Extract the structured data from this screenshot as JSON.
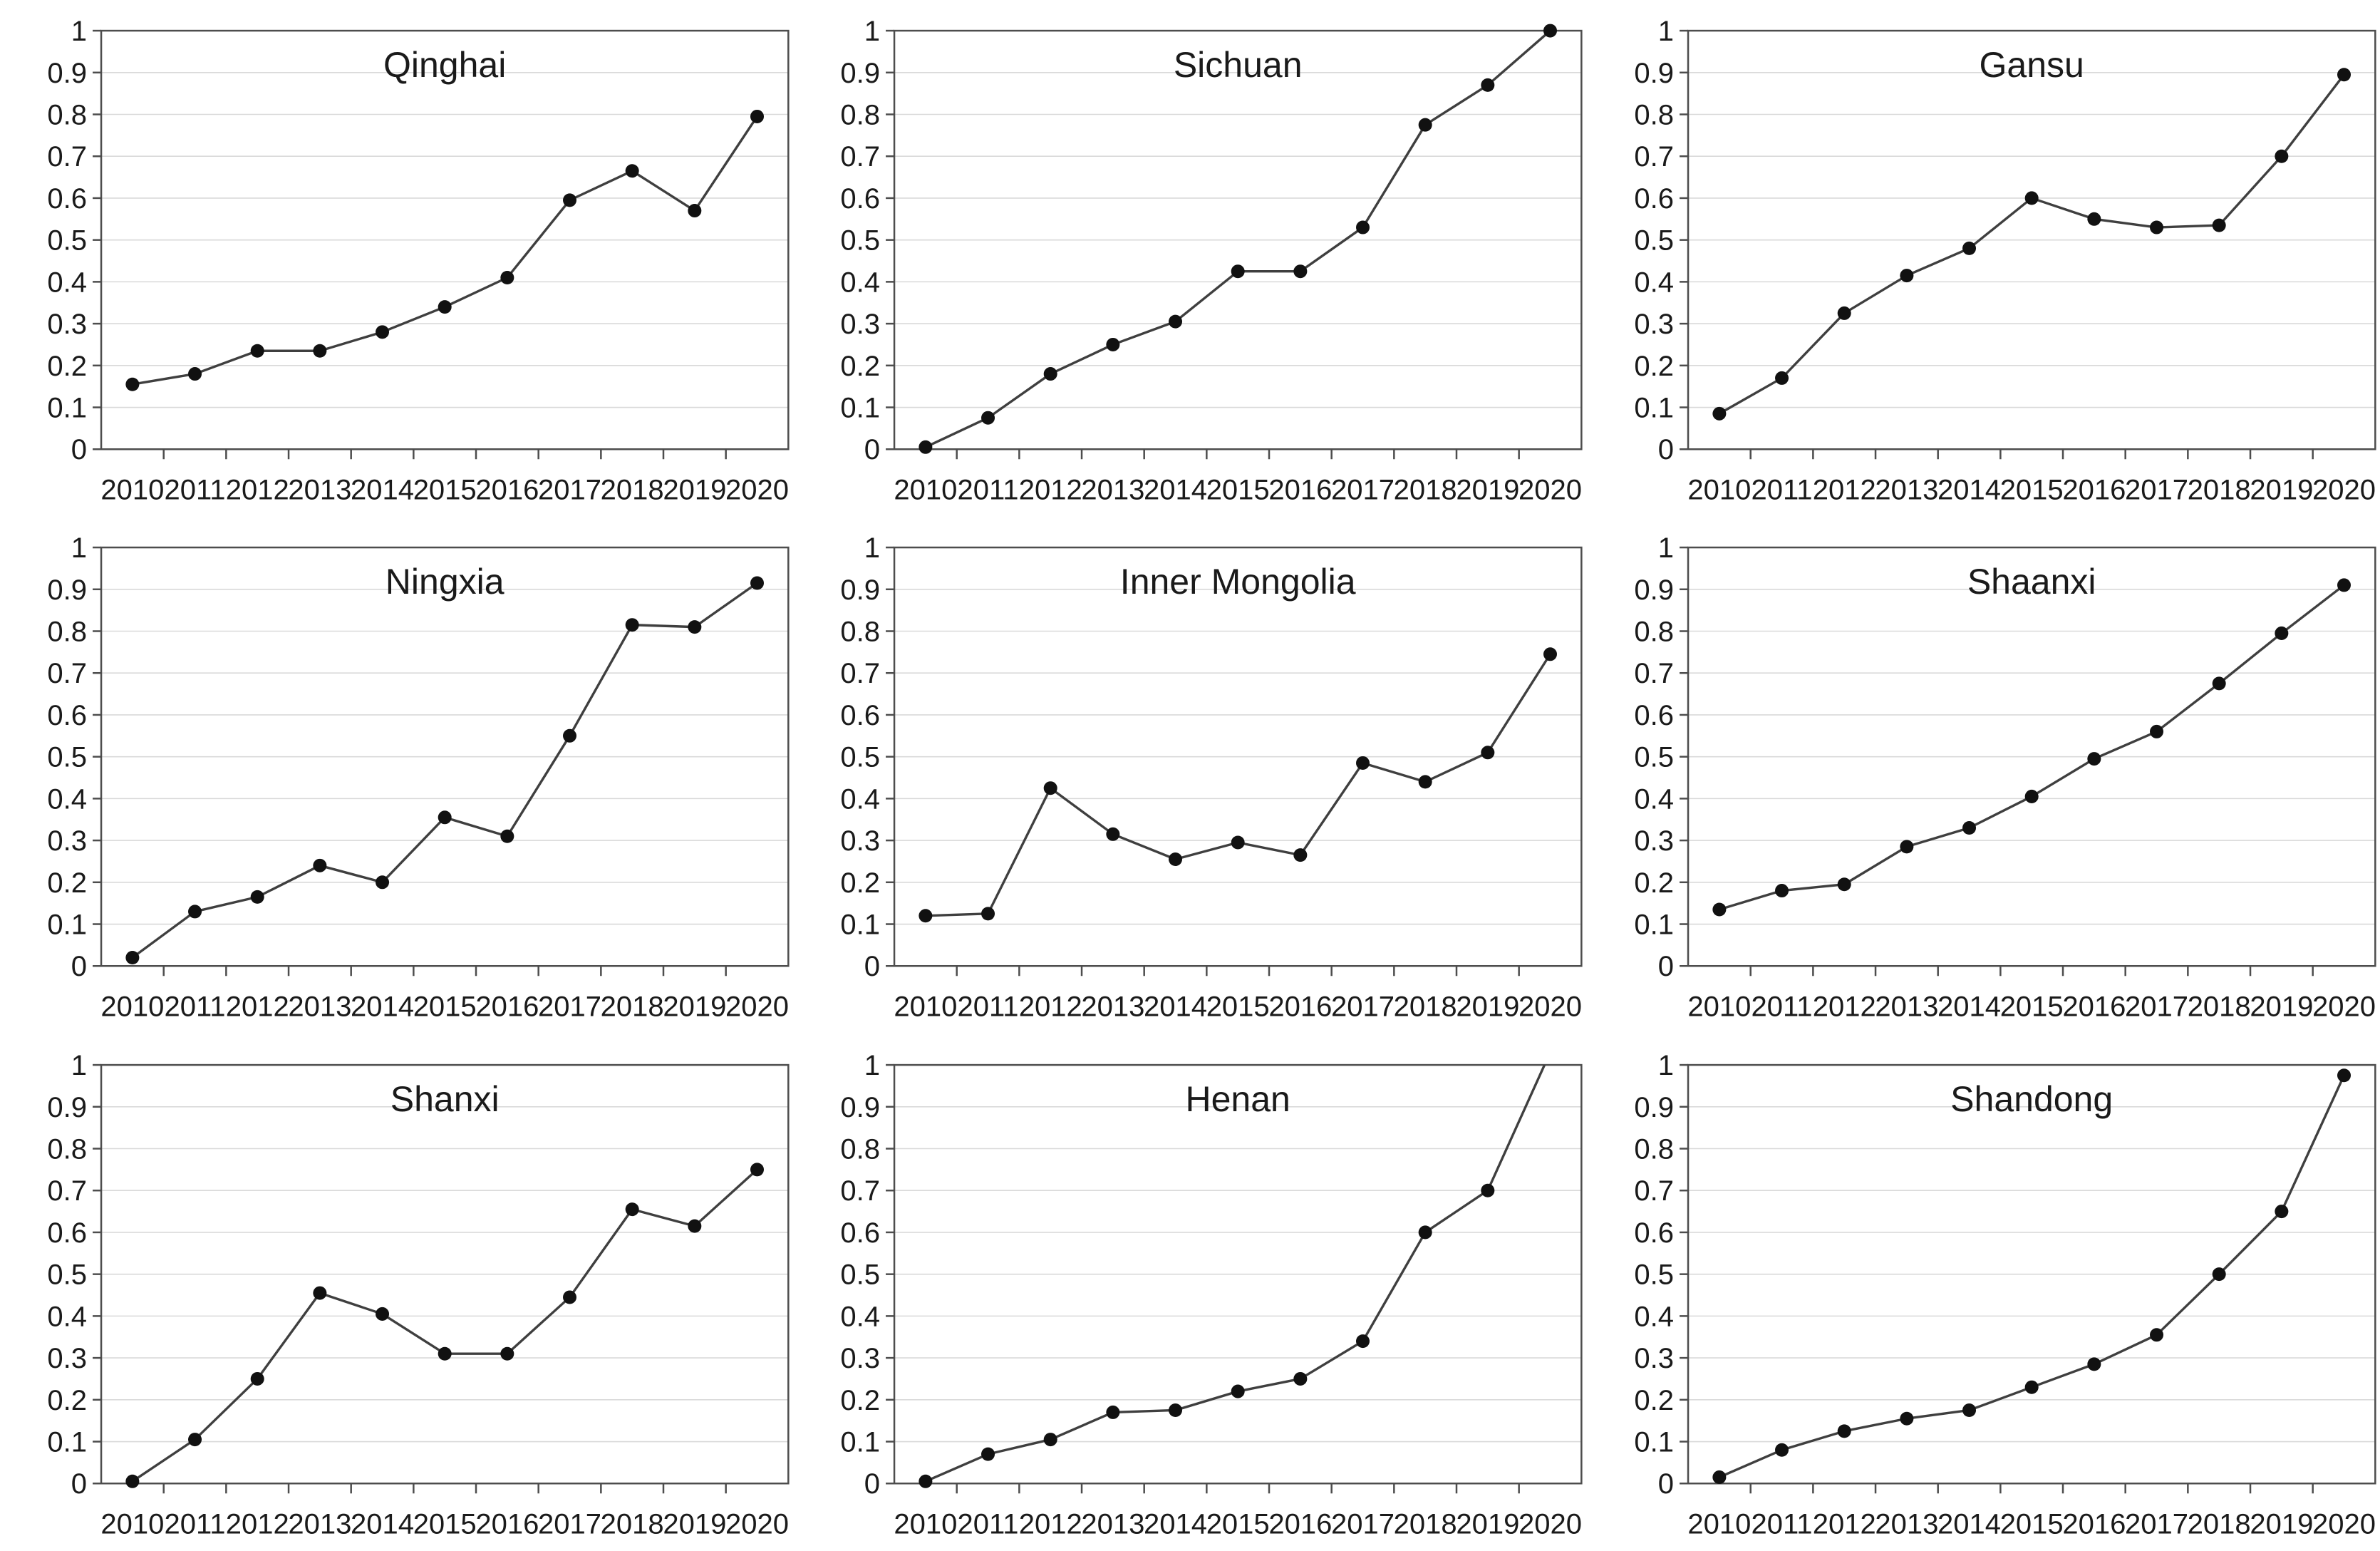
{
  "page": {
    "background": "#ffffff"
  },
  "chart_style": {
    "line_color": "#3f3f3f",
    "marker_color": "#111111",
    "grid_color": "#d9d9d9",
    "frame_color": "#4d4d4d",
    "tick_color": "#4d4d4d",
    "tick_label_color": "#1a1a1a",
    "title_color": "#1a1a1a"
  },
  "axis_labels": {
    "yticks": [
      "0",
      "0.1",
      "0.2",
      "0.3",
      "0.4",
      "0.5",
      "0.6",
      "0.7",
      "0.8",
      "0.9",
      "1"
    ],
    "ytick_values": [
      0,
      0.1,
      0.2,
      0.3,
      0.4,
      0.5,
      0.6,
      0.7,
      0.8,
      0.9,
      1
    ]
  },
  "chart_data": [
    {
      "type": "line",
      "title": "Qinghai",
      "categories": [
        "2010",
        "2011",
        "2012",
        "2013",
        "2014",
        "2015",
        "2016",
        "2017",
        "2018",
        "2019",
        "2020"
      ],
      "values": [
        0.155,
        0.18,
        0.235,
        0.235,
        0.28,
        0.34,
        0.41,
        0.595,
        0.665,
        0.57,
        0.795
      ],
      "xlabel": "",
      "ylabel": "",
      "ylim": [
        0,
        1
      ],
      "grid": true,
      "legend": "none"
    },
    {
      "type": "line",
      "title": "Sichuan",
      "categories": [
        "2010",
        "2011",
        "2012",
        "2013",
        "2014",
        "2015",
        "2016",
        "2017",
        "2018",
        "2019",
        "2020"
      ],
      "values": [
        0.005,
        0.075,
        0.18,
        0.25,
        0.305,
        0.425,
        0.425,
        0.53,
        0.775,
        0.87,
        1.0
      ],
      "xlabel": "",
      "ylabel": "",
      "ylim": [
        0,
        1
      ],
      "grid": true,
      "legend": "none"
    },
    {
      "type": "line",
      "title": "Gansu",
      "categories": [
        "2010",
        "2011",
        "2012",
        "2013",
        "2014",
        "2015",
        "2016",
        "2017",
        "2018",
        "2019",
        "2020"
      ],
      "values": [
        0.085,
        0.17,
        0.325,
        0.415,
        0.48,
        0.6,
        0.55,
        0.53,
        0.535,
        0.7,
        0.895
      ],
      "xlabel": "",
      "ylabel": "",
      "ylim": [
        0,
        1
      ],
      "grid": true,
      "legend": "none"
    },
    {
      "type": "line",
      "title": "Ningxia",
      "categories": [
        "2010",
        "2011",
        "2012",
        "2013",
        "2014",
        "2015",
        "2016",
        "2017",
        "2018",
        "2019",
        "2020"
      ],
      "values": [
        0.02,
        0.13,
        0.165,
        0.24,
        0.2,
        0.355,
        0.31,
        0.55,
        0.815,
        0.81,
        0.915
      ],
      "xlabel": "",
      "ylabel": "",
      "ylim": [
        0,
        1
      ],
      "grid": true,
      "legend": "none"
    },
    {
      "type": "line",
      "title": "Inner Mongolia",
      "categories": [
        "2010",
        "2011",
        "2012",
        "2013",
        "2014",
        "2015",
        "2016",
        "2017",
        "2018",
        "2019",
        "2020"
      ],
      "values": [
        0.12,
        0.125,
        0.425,
        0.315,
        0.255,
        0.295,
        0.265,
        0.485,
        0.44,
        0.51,
        0.745
      ],
      "xlabel": "",
      "ylabel": "",
      "ylim": [
        0,
        1
      ],
      "grid": true,
      "legend": "none"
    },
    {
      "type": "line",
      "title": "Shaanxi",
      "categories": [
        "2010",
        "2011",
        "2012",
        "2013",
        "2014",
        "2015",
        "2016",
        "2017",
        "2018",
        "2019",
        "2020"
      ],
      "values": [
        0.135,
        0.18,
        0.195,
        0.285,
        0.33,
        0.405,
        0.495,
        0.56,
        0.675,
        0.795,
        0.91
      ],
      "xlabel": "",
      "ylabel": "",
      "ylim": [
        0,
        1
      ],
      "grid": true,
      "legend": "none"
    },
    {
      "type": "line",
      "title": "Shanxi",
      "categories": [
        "2010",
        "2011",
        "2012",
        "2013",
        "2014",
        "2015",
        "2016",
        "2017",
        "2018",
        "2019",
        "2020"
      ],
      "values": [
        0.005,
        0.105,
        0.25,
        0.455,
        0.405,
        0.31,
        0.31,
        0.445,
        0.655,
        0.615,
        0.75
      ],
      "xlabel": "",
      "ylabel": "",
      "ylim": [
        0,
        1
      ],
      "grid": true,
      "legend": "none"
    },
    {
      "type": "line",
      "title": "Henan",
      "categories": [
        "2010",
        "2011",
        "2012",
        "2013",
        "2014",
        "2015",
        "2016",
        "2017",
        "2018",
        "2019",
        "2020"
      ],
      "values": [
        0.005,
        0.07,
        0.105,
        0.17,
        0.175,
        0.22,
        0.25,
        0.34,
        0.6,
        0.7,
        1.03
      ],
      "xlabel": "",
      "ylabel": "",
      "ylim": [
        0,
        1
      ],
      "grid": true,
      "legend": "none",
      "note_last_point_clipped_above_axis": true
    },
    {
      "type": "line",
      "title": "Shandong",
      "categories": [
        "2010",
        "2011",
        "2012",
        "2013",
        "2014",
        "2015",
        "2016",
        "2017",
        "2018",
        "2019",
        "2020"
      ],
      "values": [
        0.015,
        0.08,
        0.125,
        0.155,
        0.175,
        0.23,
        0.285,
        0.355,
        0.5,
        0.65,
        0.975
      ],
      "xlabel": "",
      "ylabel": "",
      "ylim": [
        0,
        1
      ],
      "grid": true,
      "legend": "none"
    }
  ]
}
